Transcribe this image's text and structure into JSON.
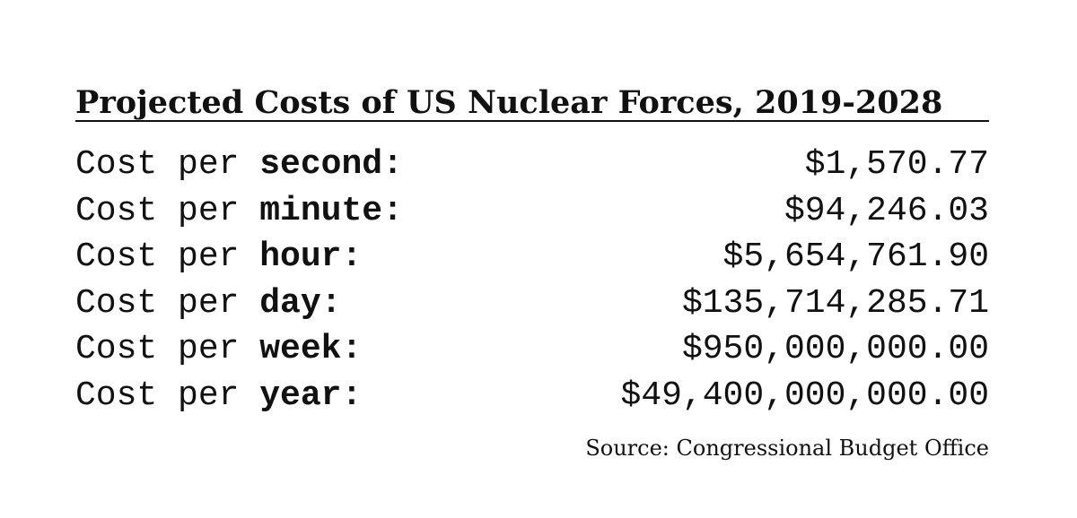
{
  "title": "Projected Costs of US Nuclear Forces, 2019-2028",
  "rows": [
    {
      "prefix": "Cost per",
      "unit": "second:",
      "value": "$1,570.77"
    },
    {
      "prefix": "Cost per",
      "unit": "minute:",
      "value": "$94,246.03"
    },
    {
      "prefix": "Cost per",
      "unit": "hour:",
      "value": "$5,654,761.90"
    },
    {
      "prefix": "Cost per",
      "unit": "day:",
      "value": "$135,714,285.71"
    },
    {
      "prefix": "Cost per",
      "unit": "week:",
      "value": "$950,000,000.00"
    },
    {
      "prefix": "Cost per",
      "unit": "year:",
      "value": "$49,400,000,000.00"
    }
  ],
  "source": "Source: Congressional Budget Office"
}
